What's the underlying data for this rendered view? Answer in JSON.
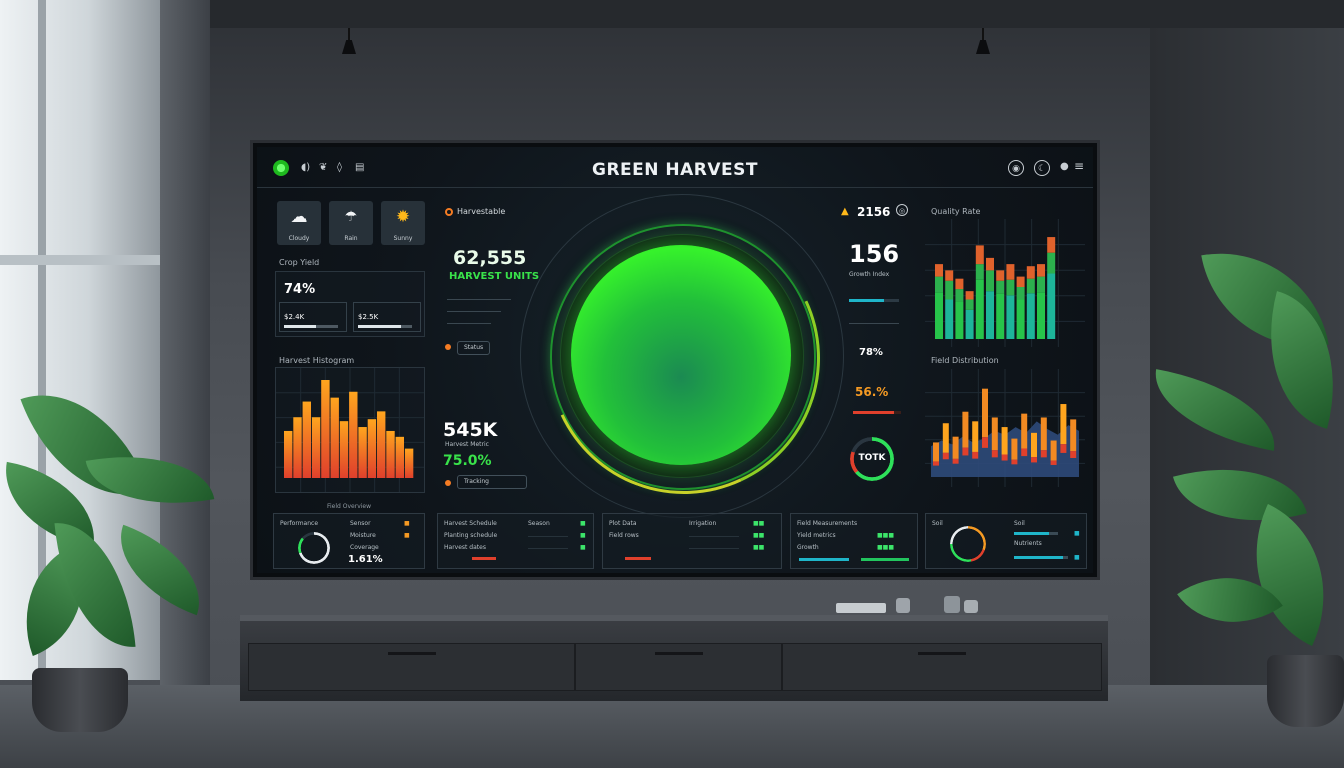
{
  "app": {
    "title": "GREEN HARVEST",
    "colors": {
      "accent": "#36f22b",
      "bg": "#0f151b",
      "orange": "#f59a23",
      "red": "#e0402c",
      "teal": "#1fb5c9"
    }
  },
  "topbar": {
    "left_icons": [
      "app-logo-icon",
      "sound-icon",
      "leaf-icon",
      "drop-icon",
      "calendar-icon"
    ],
    "right_icons": [
      "settings-icon",
      "moon-icon",
      "user-icon",
      "menu-icon"
    ]
  },
  "weather": [
    {
      "label": "Cloudy",
      "icon": "cloud-icon"
    },
    {
      "label": "Rain",
      "icon": "rain-icon"
    },
    {
      "label": "Sunny",
      "icon": "sun-icon"
    }
  ],
  "crop_yield": {
    "title": "Crop Yield",
    "value": "74%",
    "stat1": "$2.4K",
    "stat2": "$2.5K"
  },
  "harvest_histogram": {
    "title": "Harvest Histogram",
    "values": [
      0.48,
      0.62,
      0.78,
      0.62,
      1.0,
      0.82,
      0.58,
      0.88,
      0.52,
      0.6,
      0.68,
      0.48,
      0.42,
      0.3
    ]
  },
  "center": {
    "badge": "Harvestable",
    "value1": "62,555",
    "value1_label": "HARVEST UNITS",
    "value2": "545K",
    "value2_label": "Harvest Metric",
    "value3": "75.0%",
    "chip1": "Status",
    "chip2": "Tracking"
  },
  "right_stats": {
    "header_value": "2156",
    "big_value": "156",
    "big_label": "Growth Index",
    "small_value": "78%",
    "orange_value": "56.",
    "orange_value_suffix": "%",
    "ring_value": "TOTK"
  },
  "quality_chart": {
    "title": "Quality Rate",
    "bars": [
      {
        "top": 0.12,
        "mid": 0.15,
        "total": 0.72
      },
      {
        "top": 0.1,
        "mid": 0.18,
        "total": 0.66
      },
      {
        "top": 0.1,
        "mid": 0.12,
        "total": 0.58
      },
      {
        "top": 0.08,
        "mid": 0.1,
        "total": 0.46
      },
      {
        "top": 0.18,
        "mid": 0.15,
        "total": 0.9
      },
      {
        "top": 0.12,
        "mid": 0.2,
        "total": 0.78
      },
      {
        "top": 0.1,
        "mid": 0.12,
        "total": 0.66
      },
      {
        "top": 0.15,
        "mid": 0.15,
        "total": 0.72
      },
      {
        "top": 0.1,
        "mid": 0.12,
        "total": 0.6
      },
      {
        "top": 0.12,
        "mid": 0.14,
        "total": 0.7
      },
      {
        "top": 0.12,
        "mid": 0.15,
        "total": 0.72
      },
      {
        "top": 0.15,
        "mid": 0.2,
        "total": 0.98
      }
    ]
  },
  "field_chart": {
    "title": "Field Distribution",
    "bars": [
      0.36,
      0.56,
      0.42,
      0.68,
      0.58,
      0.92,
      0.62,
      0.52,
      0.4,
      0.66,
      0.46,
      0.62,
      0.38,
      0.76,
      0.6
    ],
    "area": [
      0.32,
      0.38,
      0.34,
      0.42,
      0.36,
      0.4,
      0.48,
      0.44,
      0.52,
      0.46,
      0.58,
      0.5,
      0.44,
      0.54,
      0.48
    ]
  },
  "bottom": {
    "title": "Field Overview",
    "card1": {
      "title": "Performance",
      "pct": "1.61%",
      "rows": [
        "Sensor",
        "Moisture",
        "Coverage"
      ]
    },
    "card2": {
      "title": "Harvest Schedule",
      "rows": [
        "Planting schedule",
        "Harvest dates",
        "Season"
      ]
    },
    "card3": {
      "title": "Plot Data",
      "rows": [
        "Plot Data",
        "Field rows",
        "Irrigation"
      ]
    },
    "card4": {
      "title": "Field Measurements",
      "rows": [
        "Yield metrics",
        "Growth"
      ]
    },
    "card5": {
      "title": "Soil",
      "rows": [
        "Soil",
        "Nutrients"
      ]
    }
  }
}
